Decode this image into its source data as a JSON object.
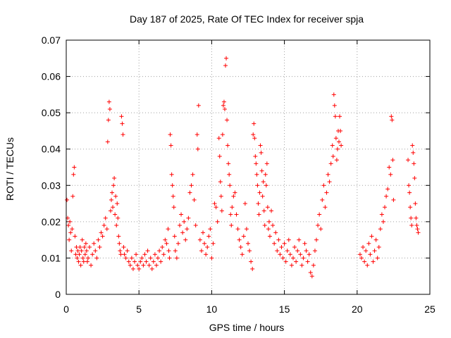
{
  "chart_data": {
    "type": "scatter",
    "title": "Day 187 of 2025, Rate Of TEC Index for receiver spja",
    "xlabel": "GPS time / hours",
    "ylabel": "ROTI / TECUs",
    "xlim": [
      0,
      25
    ],
    "ylim": [
      0,
      0.07
    ],
    "xticks": [
      0,
      5,
      10,
      15,
      20,
      25
    ],
    "yticks": [
      0,
      0.01,
      0.02,
      0.03,
      0.04,
      0.05,
      0.06,
      0.07
    ],
    "xtick_labels": [
      "0",
      "5",
      "10",
      "15",
      "20",
      "25"
    ],
    "ytick_labels": [
      "0",
      "0.01",
      "0.02",
      "0.03",
      "0.04",
      "0.05",
      "0.06",
      "0.07"
    ],
    "grid": true,
    "marker": "+",
    "color": "#ff0000",
    "series": [
      {
        "name": "ROTI",
        "points": [
          [
            0.05,
            0.026
          ],
          [
            0.1,
            0.021
          ],
          [
            0.15,
            0.019
          ],
          [
            0.2,
            0.015
          ],
          [
            0.25,
            0.02
          ],
          [
            0.3,
            0.017
          ],
          [
            0.35,
            0.012
          ],
          [
            0.4,
            0.018
          ],
          [
            0.45,
            0.027
          ],
          [
            0.5,
            0.033
          ],
          [
            0.55,
            0.035
          ],
          [
            0.6,
            0.016
          ],
          [
            0.65,
            0.011
          ],
          [
            0.7,
            0.013
          ],
          [
            0.75,
            0.01
          ],
          [
            0.8,
            0.012
          ],
          [
            0.85,
            0.009
          ],
          [
            0.9,
            0.011
          ],
          [
            0.95,
            0.013
          ],
          [
            1.0,
            0.008
          ],
          [
            1.05,
            0.012
          ],
          [
            1.1,
            0.015
          ],
          [
            1.15,
            0.01
          ],
          [
            1.2,
            0.009
          ],
          [
            1.25,
            0.013
          ],
          [
            1.3,
            0.011
          ],
          [
            1.35,
            0.014
          ],
          [
            1.4,
            0.012
          ],
          [
            1.45,
            0.009
          ],
          [
            1.5,
            0.01
          ],
          [
            1.6,
            0.013
          ],
          [
            1.7,
            0.008
          ],
          [
            1.8,
            0.011
          ],
          [
            1.9,
            0.014
          ],
          [
            2.0,
            0.012
          ],
          [
            2.1,
            0.01
          ],
          [
            2.2,
            0.015
          ],
          [
            2.3,
            0.013
          ],
          [
            2.4,
            0.017
          ],
          [
            2.5,
            0.016
          ],
          [
            2.6,
            0.019
          ],
          [
            2.7,
            0.021
          ],
          [
            2.8,
            0.018
          ],
          [
            2.85,
            0.042
          ],
          [
            2.9,
            0.048
          ],
          [
            2.95,
            0.053
          ],
          [
            3.0,
            0.051
          ],
          [
            3.05,
            0.023
          ],
          [
            3.1,
            0.026
          ],
          [
            3.15,
            0.028
          ],
          [
            3.2,
            0.024
          ],
          [
            3.25,
            0.03
          ],
          [
            3.3,
            0.032
          ],
          [
            3.35,
            0.022
          ],
          [
            3.4,
            0.027
          ],
          [
            3.45,
            0.019
          ],
          [
            3.5,
            0.025
          ],
          [
            3.55,
            0.021
          ],
          [
            3.6,
            0.016
          ],
          [
            3.65,
            0.014
          ],
          [
            3.7,
            0.012
          ],
          [
            3.75,
            0.011
          ],
          [
            3.8,
            0.049
          ],
          [
            3.85,
            0.047
          ],
          [
            3.9,
            0.044
          ],
          [
            3.95,
            0.013
          ],
          [
            4.0,
            0.011
          ],
          [
            4.1,
            0.01
          ],
          [
            4.2,
            0.012
          ],
          [
            4.3,
            0.009
          ],
          [
            4.4,
            0.008
          ],
          [
            4.5,
            0.01
          ],
          [
            4.6,
            0.007
          ],
          [
            4.7,
            0.009
          ],
          [
            4.8,
            0.011
          ],
          [
            4.9,
            0.008
          ],
          [
            5.0,
            0.007
          ],
          [
            5.1,
            0.009
          ],
          [
            5.2,
            0.01
          ],
          [
            5.3,
            0.008
          ],
          [
            5.4,
            0.011
          ],
          [
            5.5,
            0.009
          ],
          [
            5.6,
            0.012
          ],
          [
            5.7,
            0.008
          ],
          [
            5.8,
            0.01
          ],
          [
            5.9,
            0.007
          ],
          [
            6.0,
            0.009
          ],
          [
            6.1,
            0.011
          ],
          [
            6.2,
            0.008
          ],
          [
            6.3,
            0.01
          ],
          [
            6.4,
            0.012
          ],
          [
            6.5,
            0.009
          ],
          [
            6.6,
            0.013
          ],
          [
            6.7,
            0.011
          ],
          [
            6.8,
            0.015
          ],
          [
            6.9,
            0.014
          ],
          [
            7.0,
            0.018
          ],
          [
            7.05,
            0.012
          ],
          [
            7.1,
            0.01
          ],
          [
            7.15,
            0.044
          ],
          [
            7.2,
            0.041
          ],
          [
            7.25,
            0.033
          ],
          [
            7.3,
            0.03
          ],
          [
            7.35,
            0.027
          ],
          [
            7.4,
            0.024
          ],
          [
            7.45,
            0.016
          ],
          [
            7.5,
            0.012
          ],
          [
            7.6,
            0.01
          ],
          [
            7.7,
            0.014
          ],
          [
            7.8,
            0.019
          ],
          [
            7.9,
            0.022
          ],
          [
            8.0,
            0.017
          ],
          [
            8.1,
            0.02
          ],
          [
            8.2,
            0.015
          ],
          [
            8.3,
            0.018
          ],
          [
            8.4,
            0.021
          ],
          [
            8.5,
            0.028
          ],
          [
            8.6,
            0.03
          ],
          [
            8.7,
            0.033
          ],
          [
            8.8,
            0.026
          ],
          [
            8.9,
            0.019
          ],
          [
            9.0,
            0.044
          ],
          [
            9.05,
            0.04
          ],
          [
            9.1,
            0.052
          ],
          [
            9.2,
            0.015
          ],
          [
            9.3,
            0.012
          ],
          [
            9.4,
            0.017
          ],
          [
            9.5,
            0.014
          ],
          [
            9.6,
            0.011
          ],
          [
            9.7,
            0.013
          ],
          [
            9.8,
            0.016
          ],
          [
            9.9,
            0.018
          ],
          [
            10.0,
            0.01
          ],
          [
            10.1,
            0.014
          ],
          [
            10.2,
            0.025
          ],
          [
            10.3,
            0.024
          ],
          [
            10.4,
            0.02
          ],
          [
            10.5,
            0.043
          ],
          [
            10.55,
            0.038
          ],
          [
            10.6,
            0.031
          ],
          [
            10.65,
            0.027
          ],
          [
            10.7,
            0.023
          ],
          [
            10.75,
            0.044
          ],
          [
            10.8,
            0.052
          ],
          [
            10.85,
            0.053
          ],
          [
            10.9,
            0.051
          ],
          [
            10.95,
            0.063
          ],
          [
            11.0,
            0.065
          ],
          [
            11.05,
            0.048
          ],
          [
            11.1,
            0.041
          ],
          [
            11.15,
            0.036
          ],
          [
            11.2,
            0.033
          ],
          [
            11.25,
            0.03
          ],
          [
            11.3,
            0.022
          ],
          [
            11.35,
            0.019
          ],
          [
            11.4,
            0.024
          ],
          [
            11.5,
            0.027
          ],
          [
            11.6,
            0.028
          ],
          [
            11.7,
            0.022
          ],
          [
            11.8,
            0.018
          ],
          [
            11.9,
            0.015
          ],
          [
            12.0,
            0.013
          ],
          [
            12.1,
            0.011
          ],
          [
            12.2,
            0.016
          ],
          [
            12.3,
            0.025
          ],
          [
            12.4,
            0.018
          ],
          [
            12.5,
            0.014
          ],
          [
            12.6,
            0.012
          ],
          [
            12.7,
            0.009
          ],
          [
            12.8,
            0.007
          ],
          [
            12.85,
            0.044
          ],
          [
            12.9,
            0.047
          ],
          [
            12.95,
            0.043
          ],
          [
            13.0,
            0.038
          ],
          [
            13.05,
            0.036
          ],
          [
            13.1,
            0.033
          ],
          [
            13.15,
            0.03
          ],
          [
            13.2,
            0.025
          ],
          [
            13.25,
            0.022
          ],
          [
            13.3,
            0.028
          ],
          [
            13.35,
            0.041
          ],
          [
            13.4,
            0.039
          ],
          [
            13.45,
            0.034
          ],
          [
            13.5,
            0.027
          ],
          [
            13.55,
            0.031
          ],
          [
            13.6,
            0.023
          ],
          [
            13.65,
            0.019
          ],
          [
            13.7,
            0.033
          ],
          [
            13.75,
            0.03
          ],
          [
            13.8,
            0.036
          ],
          [
            13.85,
            0.024
          ],
          [
            13.9,
            0.018
          ],
          [
            13.95,
            0.02
          ],
          [
            14.0,
            0.016
          ],
          [
            14.1,
            0.023
          ],
          [
            14.2,
            0.019
          ],
          [
            14.3,
            0.014
          ],
          [
            14.4,
            0.017
          ],
          [
            14.5,
            0.012
          ],
          [
            14.6,
            0.015
          ],
          [
            14.7,
            0.011
          ],
          [
            14.8,
            0.013
          ],
          [
            14.9,
            0.01
          ],
          [
            15.0,
            0.014
          ],
          [
            15.1,
            0.009
          ],
          [
            15.2,
            0.012
          ],
          [
            15.3,
            0.015
          ],
          [
            15.4,
            0.011
          ],
          [
            15.5,
            0.008
          ],
          [
            15.6,
            0.01
          ],
          [
            15.7,
            0.013
          ],
          [
            15.8,
            0.009
          ],
          [
            15.9,
            0.012
          ],
          [
            16.0,
            0.015
          ],
          [
            16.1,
            0.011
          ],
          [
            16.2,
            0.008
          ],
          [
            16.3,
            0.01
          ],
          [
            16.4,
            0.014
          ],
          [
            16.5,
            0.012
          ],
          [
            16.6,
            0.009
          ],
          [
            16.7,
            0.011
          ],
          [
            16.8,
            0.006
          ],
          [
            16.9,
            0.005
          ],
          [
            17.0,
            0.008
          ],
          [
            17.1,
            0.012
          ],
          [
            17.2,
            0.015
          ],
          [
            17.3,
            0.019
          ],
          [
            17.4,
            0.022
          ],
          [
            17.5,
            0.018
          ],
          [
            17.6,
            0.026
          ],
          [
            17.7,
            0.03
          ],
          [
            17.8,
            0.024
          ],
          [
            17.9,
            0.028
          ],
          [
            18.0,
            0.033
          ],
          [
            18.1,
            0.031
          ],
          [
            18.2,
            0.036
          ],
          [
            18.3,
            0.041
          ],
          [
            18.35,
            0.038
          ],
          [
            18.4,
            0.055
          ],
          [
            18.45,
            0.052
          ],
          [
            18.5,
            0.049
          ],
          [
            18.55,
            0.043
          ],
          [
            18.6,
            0.037
          ],
          [
            18.65,
            0.04
          ],
          [
            18.7,
            0.045
          ],
          [
            18.75,
            0.042
          ],
          [
            18.8,
            0.049
          ],
          [
            18.85,
            0.045
          ],
          [
            18.9,
            0.041
          ],
          [
            20.2,
            0.011
          ],
          [
            20.3,
            0.01
          ],
          [
            20.4,
            0.013
          ],
          [
            20.5,
            0.009
          ],
          [
            20.6,
            0.012
          ],
          [
            20.7,
            0.008
          ],
          [
            20.8,
            0.014
          ],
          [
            20.9,
            0.011
          ],
          [
            21.0,
            0.016
          ],
          [
            21.1,
            0.009
          ],
          [
            21.2,
            0.012
          ],
          [
            21.3,
            0.015
          ],
          [
            21.4,
            0.01
          ],
          [
            21.5,
            0.013
          ],
          [
            21.6,
            0.018
          ],
          [
            21.7,
            0.022
          ],
          [
            21.8,
            0.02
          ],
          [
            21.9,
            0.024
          ],
          [
            22.0,
            0.027
          ],
          [
            22.1,
            0.029
          ],
          [
            22.2,
            0.035
          ],
          [
            22.3,
            0.033
          ],
          [
            22.35,
            0.049
          ],
          [
            22.4,
            0.048
          ],
          [
            22.45,
            0.037
          ],
          [
            22.5,
            0.026
          ],
          [
            23.5,
            0.037
          ],
          [
            23.55,
            0.03
          ],
          [
            23.6,
            0.028
          ],
          [
            23.65,
            0.024
          ],
          [
            23.7,
            0.021
          ],
          [
            23.75,
            0.019
          ],
          [
            23.8,
            0.041
          ],
          [
            23.85,
            0.039
          ],
          [
            23.9,
            0.036
          ],
          [
            23.95,
            0.032
          ],
          [
            24.0,
            0.025
          ],
          [
            24.05,
            0.021
          ],
          [
            24.1,
            0.019
          ],
          [
            24.15,
            0.018
          ],
          [
            24.2,
            0.017
          ]
        ]
      }
    ]
  }
}
